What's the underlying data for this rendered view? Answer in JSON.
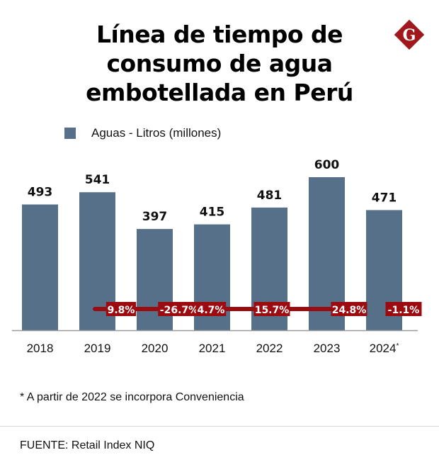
{
  "title": {
    "lines": [
      "Línea de tiempo de",
      "consumo de agua",
      "embotellada en Perú"
    ]
  },
  "logo": {
    "letter": "G",
    "icon": "brand-diamond-logo",
    "color": "#a0171c"
  },
  "colors": {
    "bar": "#56708a",
    "change_badge": "#9c0b0f",
    "axis": "#999999"
  },
  "chart_data": {
    "type": "bar",
    "title": "Línea de tiempo de consumo de agua embotellada en Perú",
    "xlabel": "",
    "ylabel": "",
    "categories": [
      "2018",
      "2019",
      "2020",
      "2021",
      "2022",
      "2023",
      "2024*"
    ],
    "series": [
      {
        "name": "Aguas - Litros (millones)",
        "values": [
          493,
          541,
          397,
          415,
          481,
          600,
          471
        ]
      }
    ],
    "data_labels": [
      "493",
      "541",
      "397",
      "415",
      "481",
      "600",
      "471"
    ],
    "year_over_year_change": [
      "9.8%",
      "-26.7%",
      "4.7%",
      "15.7%",
      "24.8%",
      "-1.1%"
    ],
    "ylim": [
      0,
      600
    ],
    "grid": false,
    "legend": "top-left"
  },
  "legend": {
    "label": "Aguas - Litros (millones)"
  },
  "footnote": "* A partir de 2022 se incorpora Conveniencia",
  "source": "FUENTE: Retail Index NIQ"
}
